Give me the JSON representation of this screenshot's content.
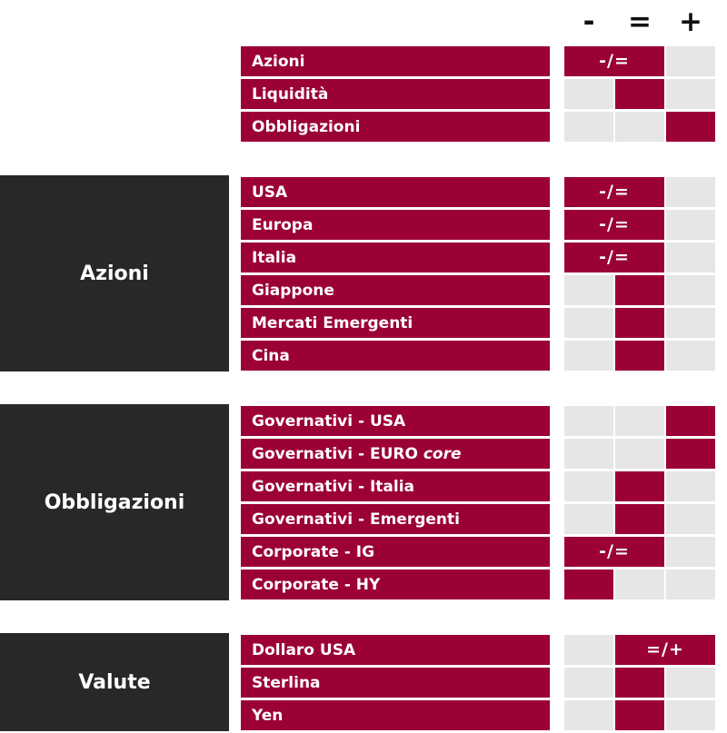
{
  "header": {
    "minus": "-",
    "equal": "=",
    "plus": "+"
  },
  "groups": {
    "allocation": {
      "rows": [
        {
          "label": "Azioni",
          "position": "-/=",
          "span_text": "-/="
        },
        {
          "label": "Liquidità",
          "position": "="
        },
        {
          "label": "Obbligazioni",
          "position": "+"
        }
      ]
    },
    "azioni": {
      "title": "Azioni",
      "rows": [
        {
          "label": "USA",
          "position": "-/=",
          "span_text": "-/="
        },
        {
          "label": "Europa",
          "position": "-/=",
          "span_text": "-/="
        },
        {
          "label": "Italia",
          "position": "-/=",
          "span_text": "-/="
        },
        {
          "label": "Giappone",
          "position": "="
        },
        {
          "label": "Mercati Emergenti",
          "position": "="
        },
        {
          "label": "Cina",
          "position": "="
        }
      ]
    },
    "obbligazioni": {
      "title": "Obbligazioni",
      "rows": [
        {
          "label": "Governativi - USA",
          "position": "+"
        },
        {
          "label_main": "Governativi - EURO ",
          "label_italic": "core",
          "position": "+"
        },
        {
          "label": "Governativi - Italia",
          "position": "="
        },
        {
          "label": "Governativi - Emergenti",
          "position": "="
        },
        {
          "label": "Corporate - IG",
          "position": "-/=",
          "span_text": "-/="
        },
        {
          "label": "Corporate - HY",
          "position": "-"
        }
      ]
    },
    "valute": {
      "title": "Valute",
      "rows": [
        {
          "label": "Dollaro USA",
          "position": "=/+",
          "span_text": "=/+"
        },
        {
          "label": "Sterlina",
          "position": "="
        },
        {
          "label": "Yen",
          "position": "="
        }
      ]
    }
  },
  "colors": {
    "accent": "#9b0036",
    "group_bg": "#282828",
    "cell_bg": "#e6e6e6"
  }
}
